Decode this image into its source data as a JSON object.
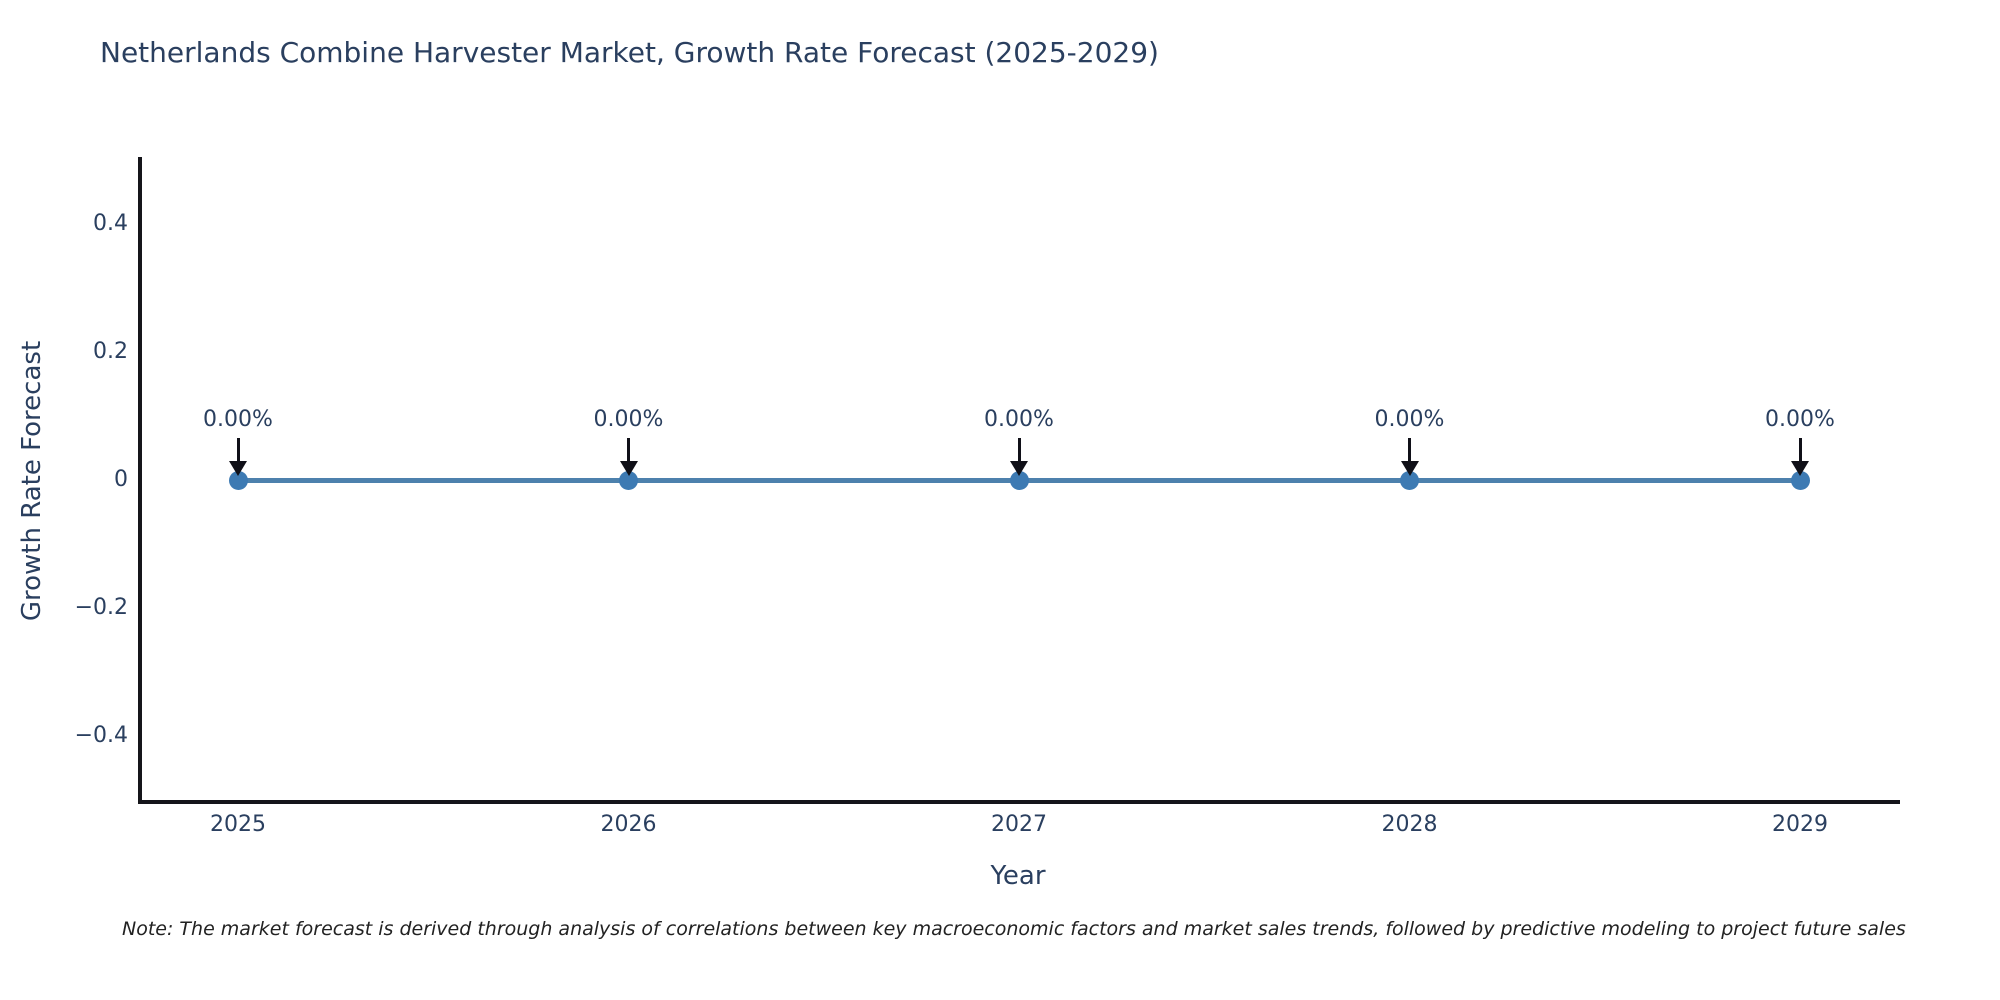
{
  "title": "Netherlands Combine Harvester Market, Growth Rate Forecast (2025-2029)",
  "note": "Note: The market forecast is derived through analysis of correlations between key macroeconomic factors and market sales trends, followed by predictive modeling to project future sales",
  "chart_data": {
    "type": "line",
    "title": "Netherlands Combine Harvester Market, Growth Rate Forecast (2025-2029)",
    "xlabel": "Year",
    "ylabel": "Growth Rate Forecast",
    "categories": [
      "2025",
      "2026",
      "2027",
      "2028",
      "2029"
    ],
    "series": [
      {
        "name": "Growth Rate Forecast",
        "values": [
          0,
          0,
          0,
          0,
          0
        ]
      }
    ],
    "point_labels": [
      "0.00%",
      "0.00%",
      "0.00%",
      "0.00%",
      "0.00%"
    ],
    "yticks": [
      {
        "value": 0.4,
        "label": "0.4"
      },
      {
        "value": 0.2,
        "label": "0.2"
      },
      {
        "value": 0,
        "label": "0"
      },
      {
        "value": -0.2,
        "label": "−0.2"
      },
      {
        "value": -0.4,
        "label": "−0.4"
      }
    ],
    "ylim": [
      -0.5,
      0.5
    ],
    "grid": false,
    "legend_position": "none",
    "colors": {
      "line": "#4d81ad",
      "marker": "#3d7ab3",
      "arrow": "#101018",
      "axis": "#15151a",
      "text": "#2a3f5f"
    }
  }
}
